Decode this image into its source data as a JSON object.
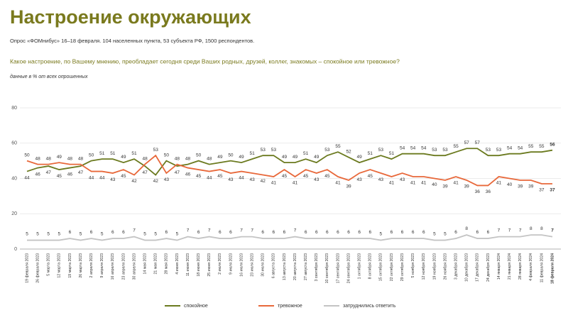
{
  "chart_data": {
    "type": "line",
    "title": "Настроение окружающих",
    "subtitle": "Опрос «ФОМнибус» 16–18 февраля. 104 населенных пункта, 53 субъекта РФ, 1500 респондентов.",
    "question": "Какое настроение, по Вашему мнению, преобладает сегодня среди Ваших родных, друзей, коллег, знакомых – спокойное или тревожное?",
    "note": "данные в % от всех опрошенных",
    "categories": [
      "19 февраля 2023",
      "26 февраля 2023",
      "5 марта 2023",
      "12 марта 2023",
      "19 марта 2023",
      "26 марта 2023",
      "2 апреля 2023",
      "9 апреля 2023",
      "16 апреля 2023",
      "23 апреля 2023",
      "30 апреля 2023",
      "14 мая 2023",
      "21 мая 2023",
      "28 мая 2023",
      "4 июня 2023",
      "11 июня 2023",
      "18 июня 2023",
      "25 июня 2023",
      "2 июля 2023",
      "9 июля 2023",
      "16 июля 2023",
      "23 июля 2023",
      "30 июля 2023",
      "6 августа 2023",
      "13 августа 2023",
      "20 августа 2023",
      "27 августа 2023",
      "3 сентября 2023",
      "10 сентября 2023",
      "17 сентября 2023",
      "24 сентября 2023",
      "1 октября 2023",
      "8 октября 2023",
      "15 октября 2023",
      "22 октября 2023",
      "29 октября 2023",
      "5 ноября 2023",
      "12 ноября 2023",
      "19 ноября 2023",
      "26 ноября 2023",
      "3 декабря 2023",
      "10 декабря 2023",
      "17 декабря 2023",
      "24 декабря 2023",
      "14 января 2024",
      "21 января 2024",
      "28 января 2024",
      "4 февраля 2024",
      "11 февраля 2024",
      "18 февраля 2024"
    ],
    "series": [
      {
        "name": "спокойное",
        "color": "#6b7a1f",
        "values": [
          44,
          46,
          47,
          45,
          46,
          47,
          50,
          51,
          51,
          49,
          51,
          47,
          42,
          50,
          47,
          48,
          50,
          48,
          49,
          50,
          49,
          51,
          53,
          53,
          49,
          49,
          51,
          49,
          53,
          55,
          52,
          49,
          51,
          53,
          51,
          54,
          54,
          54,
          53,
          53,
          55,
          57,
          57,
          53,
          53,
          54,
          54,
          55,
          55,
          56
        ]
      },
      {
        "name": "тревожное",
        "color": "#e8683a",
        "values": [
          50,
          48,
          48,
          49,
          48,
          48,
          44,
          44,
          43,
          45,
          42,
          48,
          53,
          43,
          48,
          46,
          45,
          44,
          45,
          43,
          44,
          43,
          42,
          41,
          45,
          41,
          45,
          43,
          45,
          41,
          39,
          43,
          45,
          43,
          41,
          43,
          41,
          41,
          40,
          39,
          41,
          39,
          36,
          36,
          41,
          40,
          39,
          39,
          37,
          37
        ]
      },
      {
        "name": "затруднились ответить",
        "color": "#c4c4c4",
        "values": [
          5,
          5,
          5,
          5,
          6,
          5,
          6,
          5,
          6,
          6,
          7,
          5,
          5,
          6,
          5,
          7,
          6,
          7,
          6,
          6,
          7,
          7,
          6,
          6,
          6,
          7,
          6,
          6,
          6,
          6,
          6,
          6,
          6,
          5,
          6,
          6,
          6,
          6,
          5,
          5,
          6,
          8,
          6,
          6,
          7,
          7,
          7,
          8,
          8,
          7
        ]
      }
    ],
    "ylim": [
      0,
      80
    ],
    "yticks": [
      0,
      20,
      40,
      60,
      80
    ],
    "grid": true
  }
}
